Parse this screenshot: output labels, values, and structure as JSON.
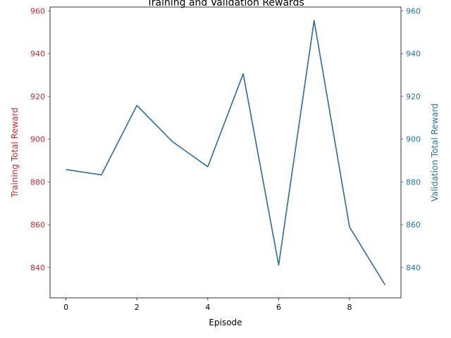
{
  "chart_data": {
    "type": "line",
    "title": "Training and Validation Rewards",
    "xlabel": "Episode",
    "ylabel_left": "Training Total Reward",
    "ylabel_right": "Validation Total Reward",
    "xlim": [
      -0.45,
      9.45
    ],
    "ylim_left": [
      825.8,
      961.8
    ],
    "ylim_right": [
      825.8,
      961.8
    ],
    "x_ticks": [
      0,
      2,
      4,
      6,
      8
    ],
    "y_ticks_left": [
      840,
      860,
      880,
      900,
      920,
      940,
      960
    ],
    "y_ticks_right": [
      840,
      860,
      880,
      900,
      920,
      940,
      960
    ],
    "grid": false,
    "colors": {
      "left_axis": "#d62728",
      "right_axis": "#1f77b4"
    },
    "x": [
      0,
      1,
      2,
      3,
      4,
      5,
      6,
      7,
      8,
      9
    ],
    "series": [
      {
        "axis": "left",
        "color": "#d62728",
        "values": [
          885.8,
          883.3,
          915.8,
          898.9,
          887.1,
          930.6,
          841.2,
          955.5,
          858.9,
          831.9
        ]
      },
      {
        "axis": "right",
        "color": "#1f77b4",
        "values": [
          885.8,
          883.3,
          915.8,
          898.9,
          887.1,
          930.6,
          841.2,
          955.5,
          858.9,
          831.9
        ]
      }
    ]
  }
}
